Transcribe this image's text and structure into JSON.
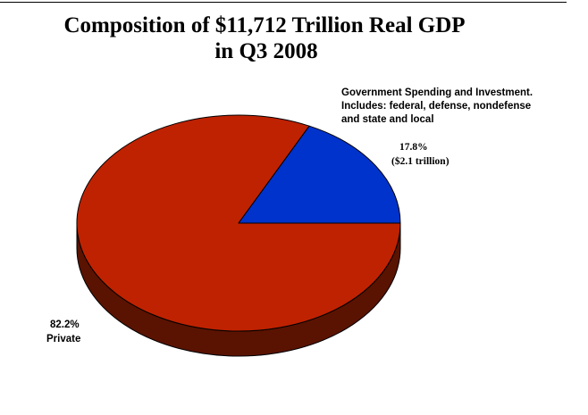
{
  "chart_data": {
    "type": "pie",
    "style": "3d",
    "title_lines": [
      "Composition of $11,712 Trillion Real GDP",
      "in Q3 2008"
    ],
    "slices": [
      {
        "label": "Government Spending and Investment. Includes: federal, defense, nondefense and state and local",
        "label_lines": [
          "Government Spending and Investment.",
          "Includes: federal, defense, nondefense",
          "and state and local"
        ],
        "percent": 17.8,
        "percent_text": "17.8%",
        "amount_text": "($2.1 trillion)",
        "color": "#0033cc"
      },
      {
        "label": "Private",
        "percent": 82.2,
        "percent_text": "82.2%",
        "color": "#bf2200"
      }
    ],
    "side_color": "#5a1300",
    "legend": "none"
  }
}
